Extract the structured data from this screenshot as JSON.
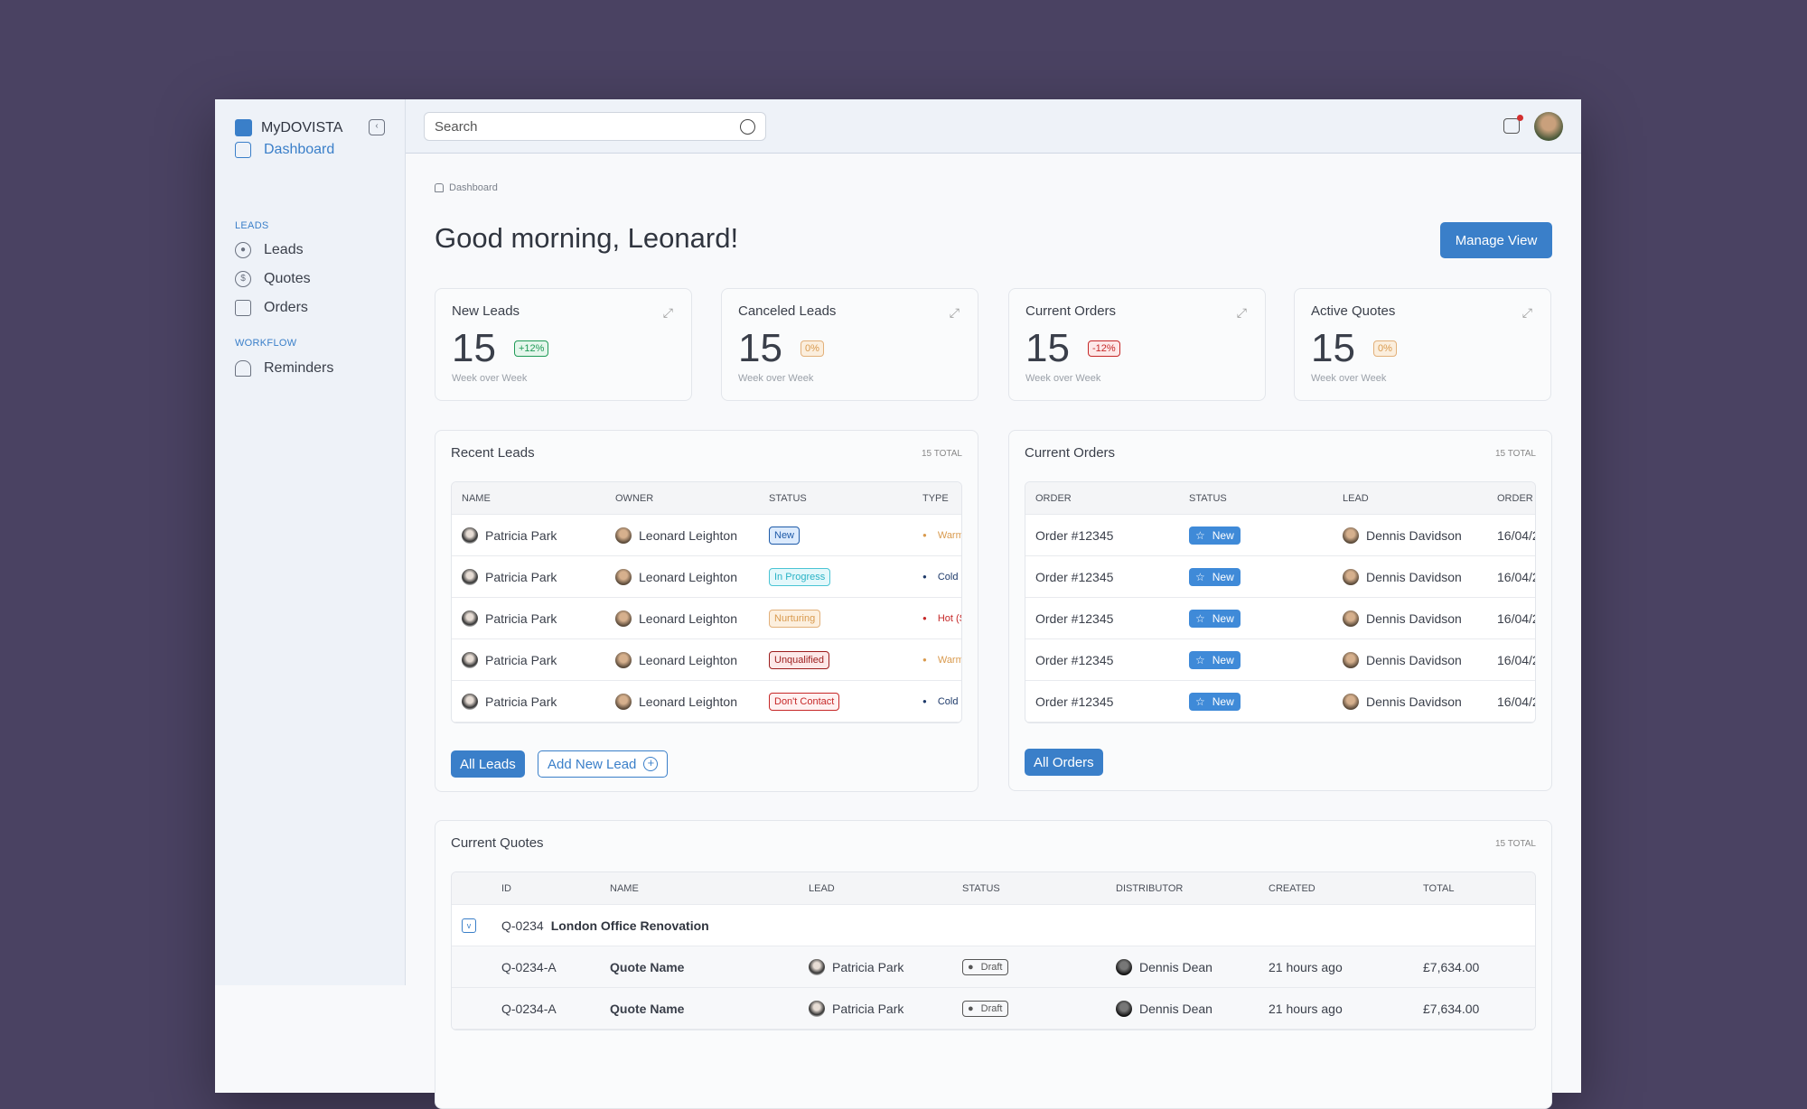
{
  "app": {
    "name": "MyDOVISTA"
  },
  "sidebar": {
    "dashboard": "Dashboard",
    "sections": [
      "LEADS",
      "WORKFLOW"
    ],
    "items": [
      "Leads",
      "Quotes",
      "Orders",
      "Reminders"
    ]
  },
  "header": {
    "search_placeholder": "Search"
  },
  "breadcrumb": "Dashboard",
  "greeting": "Good morning, Leonard!",
  "manage_view": "Manage View",
  "stats": [
    {
      "title": "New Leads",
      "value": "15",
      "change": "+12%",
      "sub": "Week over Week"
    },
    {
      "title": "Canceled Leads",
      "value": "15",
      "change": "0%",
      "sub": "Week over Week"
    },
    {
      "title": "Current Orders",
      "value": "15",
      "change": "-12%",
      "sub": "Week over Week"
    },
    {
      "title": "Active Quotes",
      "value": "15",
      "change": "0%",
      "sub": "Week over Week"
    }
  ],
  "recent_leads": {
    "title": "Recent Leads",
    "total": "15 TOTAL",
    "columns": [
      "NAME",
      "OWNER",
      "STATUS",
      "TYPE"
    ],
    "rows": [
      {
        "name": "Patricia Park",
        "owner": "Leonard Leighton",
        "status": "New",
        "type": "Warm"
      },
      {
        "name": "Patricia Park",
        "owner": "Leonard Leighton",
        "status": "In Progress",
        "type": "Cold (I"
      },
      {
        "name": "Patricia Park",
        "owner": "Leonard Leighton",
        "status": "Nurturing",
        "type": "Hot (S"
      },
      {
        "name": "Patricia Park",
        "owner": "Leonard Leighton",
        "status": "Unqualified",
        "type": "Warm"
      },
      {
        "name": "Patricia Park",
        "owner": "Leonard Leighton",
        "status": "Don't Contact",
        "type": "Cold (I"
      }
    ],
    "all_button": "All Leads",
    "add_button": "Add New Lead"
  },
  "current_orders": {
    "title": "Current Orders",
    "total": "15 TOTAL",
    "columns": [
      "ORDER",
      "STATUS",
      "LEAD",
      "ORDER"
    ],
    "rows": [
      {
        "order": "Order #12345",
        "status": "New",
        "lead": "Dennis Davidson",
        "date": "16/04/2"
      },
      {
        "order": "Order #12345",
        "status": "New",
        "lead": "Dennis Davidson",
        "date": "16/04/2"
      },
      {
        "order": "Order #12345",
        "status": "New",
        "lead": "Dennis Davidson",
        "date": "16/04/2"
      },
      {
        "order": "Order #12345",
        "status": "New",
        "lead": "Dennis Davidson",
        "date": "16/04/2"
      },
      {
        "order": "Order #12345",
        "status": "New",
        "lead": "Dennis Davidson",
        "date": "16/04/2"
      }
    ],
    "all_button": "All Orders"
  },
  "quotes": {
    "title": "Current Quotes",
    "total": "15 TOTAL",
    "columns": [
      "ID",
      "NAME",
      "LEAD",
      "STATUS",
      "DISTRIBUTOR",
      "CREATED",
      "TOTAL"
    ],
    "group": {
      "id": "Q-0234",
      "name": "London Office Renovation"
    },
    "rows": [
      {
        "id": "Q-0234-A",
        "name": "Quote Name",
        "lead": "Patricia Park",
        "status": "Draft",
        "distributor": "Dennis Dean",
        "created": "21 hours ago",
        "total": "£7,634.00"
      },
      {
        "id": "Q-0234-A",
        "name": "Quote Name",
        "lead": "Patricia Park",
        "status": "Draft",
        "distributor": "Dennis Dean",
        "created": "21 hours ago",
        "total": "£7,634.00"
      }
    ]
  }
}
